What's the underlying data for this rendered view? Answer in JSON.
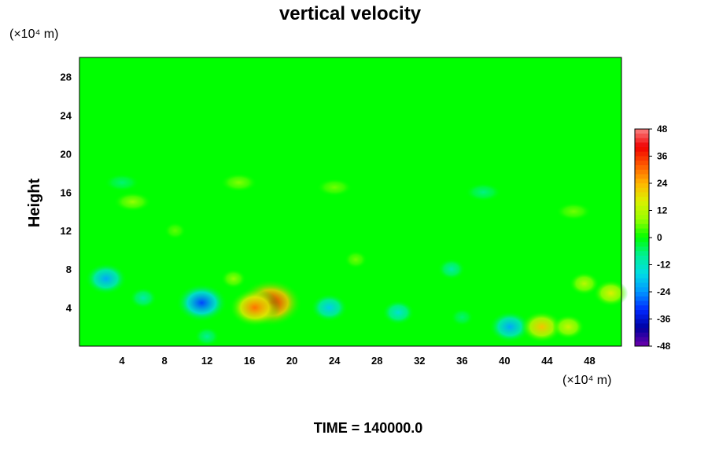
{
  "chart_data": {
    "type": "heatmap",
    "title": "vertical velocity",
    "ylabel": "Height",
    "x_unit": "(×10⁴ m)",
    "y_unit": "(×10⁴ m)",
    "time_label": "TIME = 140000.0",
    "xlim": [
      0,
      51
    ],
    "ylim": [
      0,
      30
    ],
    "xticks": [
      "4",
      "8",
      "12",
      "16",
      "20",
      "24",
      "28",
      "32",
      "36",
      "40",
      "44",
      "48"
    ],
    "yticks": [
      "4",
      "8",
      "12",
      "16",
      "20",
      "24",
      "28"
    ],
    "colorbar": {
      "range": [
        -48,
        48
      ],
      "ticks": [
        "48",
        "36",
        "24",
        "12",
        "0",
        "-12",
        "-24",
        "-36",
        "-48"
      ]
    },
    "features": [
      {
        "x": 18.0,
        "y": 4.5,
        "value": 40
      },
      {
        "x": 16.5,
        "y": 4.0,
        "value": 30
      },
      {
        "x": 11.5,
        "y": 4.5,
        "value": -30
      },
      {
        "x": 2.5,
        "y": 7.0,
        "value": -22
      },
      {
        "x": 23.5,
        "y": 4.0,
        "value": -18
      },
      {
        "x": 30.0,
        "y": 3.5,
        "value": -14
      },
      {
        "x": 40.5,
        "y": 2.0,
        "value": -22
      },
      {
        "x": 43.5,
        "y": 2.0,
        "value": 22
      },
      {
        "x": 46.0,
        "y": 2.0,
        "value": 14
      },
      {
        "x": 47.5,
        "y": 6.5,
        "value": 12
      },
      {
        "x": 50.0,
        "y": 5.5,
        "value": 16
      },
      {
        "x": 6.0,
        "y": 5.0,
        "value": -10
      },
      {
        "x": 35.0,
        "y": 8.0,
        "value": -10
      },
      {
        "x": 14.5,
        "y": 7.0,
        "value": 8
      },
      {
        "x": 26.0,
        "y": 9.0,
        "value": 6
      },
      {
        "x": 5.0,
        "y": 15.0,
        "value": 8
      },
      {
        "x": 4.0,
        "y": 17.0,
        "value": -6
      },
      {
        "x": 15.0,
        "y": 17.0,
        "value": 7
      },
      {
        "x": 24.0,
        "y": 16.5,
        "value": 6
      },
      {
        "x": 38.0,
        "y": 16.0,
        "value": -7
      },
      {
        "x": 46.5,
        "y": 14.0,
        "value": 6
      },
      {
        "x": 9.0,
        "y": 12.0,
        "value": 5
      },
      {
        "x": 12.0,
        "y": 1.0,
        "value": -8
      },
      {
        "x": 36.0,
        "y": 3.0,
        "value": -6
      }
    ]
  }
}
